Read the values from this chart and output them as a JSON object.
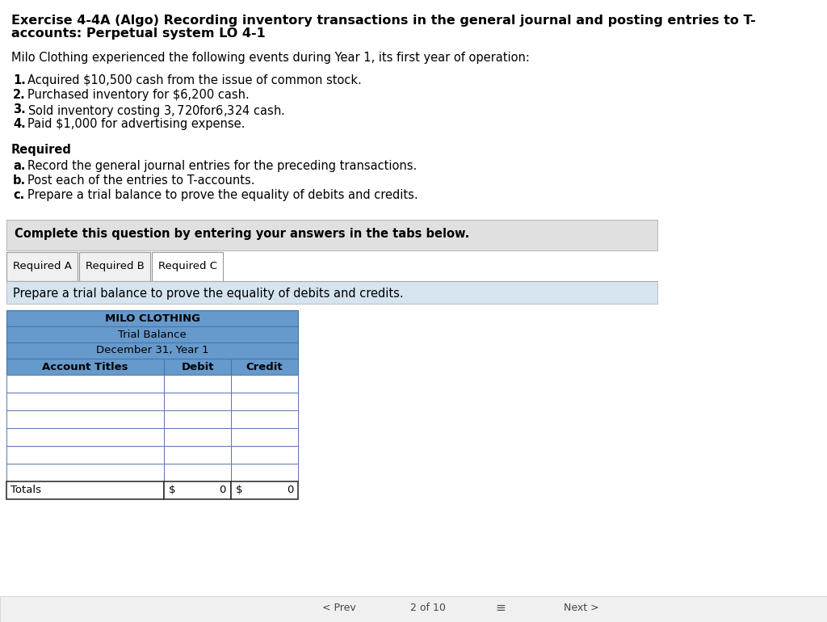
{
  "title_line1": "Exercise 4-4A (Algo) Recording inventory transactions in the general journal and posting entries to T-",
  "title_line2": "accounts: Perpetual system LO 4-1",
  "intro": "Milo Clothing experienced the following events during Year 1, its first year of operation:",
  "events": [
    "Acquired $10,500 cash from the issue of common stock.",
    "Purchased inventory for $6,200 cash.",
    "Sold inventory costing $3,720 for $6,324 cash.",
    "Paid $1,000 for advertising expense."
  ],
  "required_label": "Required",
  "required_items": [
    "Record the general journal entries for the preceding transactions.",
    "Post each of the entries to T-accounts.",
    "Prepare a trial balance to prove the equality of debits and credits."
  ],
  "complete_box_text": "Complete this question by entering your answers in the tabs below.",
  "tab_labels": [
    "Required A",
    "Required B",
    "Required C"
  ],
  "tab_instruction": "Prepare a trial balance to prove the equality of debits and credits.",
  "table_title1": "MILO CLOTHING",
  "table_title2": "Trial Balance",
  "table_title3": "December 31, Year 1",
  "col_headers": [
    "Account Titles",
    "Debit",
    "Credit"
  ],
  "num_data_rows": 6,
  "totals_label": "Totals",
  "totals_debit_sym": "$",
  "totals_debit_val": "0",
  "totals_credit_sym": "$",
  "totals_credit_val": "0",
  "bg_color": "#ffffff",
  "header_bg": "#6699cc",
  "header_bg2": "#7aaad4",
  "row_bg_white": "#ffffff",
  "row_border": "#5577aa",
  "complete_box_bg": "#e0e0e0",
  "tab_instruction_bg": "#d6e4f0",
  "tab_active_bg": "#ffffff",
  "tab_inactive_bg": "#f0f0f0",
  "tab_border": "#999999",
  "bottom_bar_bg": "#f0f0f0",
  "title_fontsize": 11.5,
  "body_fontsize": 10.5,
  "small_fontsize": 9.5,
  "table_fontsize": 9.5
}
